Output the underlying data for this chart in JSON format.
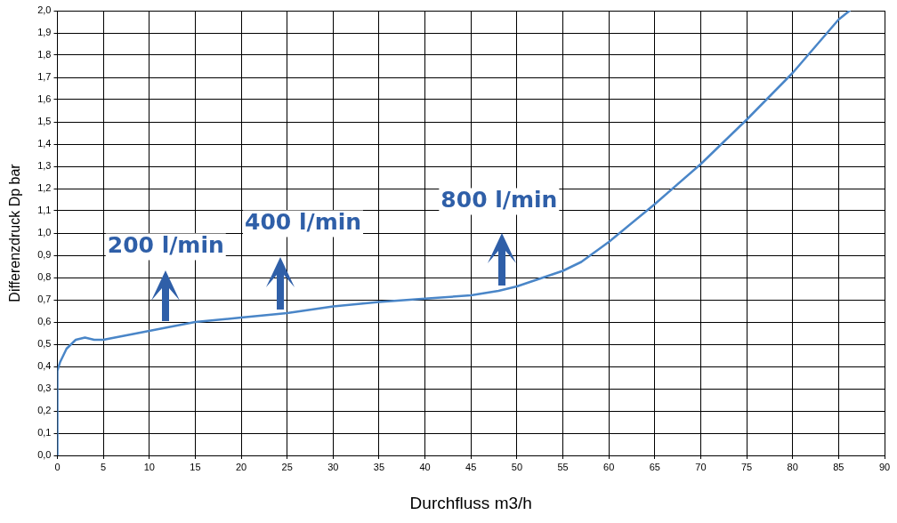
{
  "chart_data": {
    "type": "line",
    "xlabel": "Durchfluss m3/h",
    "ylabel": "Differenzdruck Dp bar",
    "x": [
      0,
      0,
      0.3,
      1,
      2,
      3,
      4,
      5,
      10,
      15,
      20,
      25,
      30,
      35,
      40,
      45,
      48,
      50,
      55,
      57,
      60,
      65,
      70,
      75,
      80,
      85,
      86.2
    ],
    "series": [
      {
        "color": "#4a86c8",
        "values": [
          0,
          0.38,
          0.42,
          0.48,
          0.52,
          0.53,
          0.52,
          0.52,
          0.56,
          0.6,
          0.62,
          0.64,
          0.67,
          0.69,
          0.705,
          0.72,
          0.74,
          0.76,
          0.83,
          0.87,
          0.96,
          1.13,
          1.31,
          1.51,
          1.72,
          1.96,
          2.0
        ]
      }
    ],
    "xlim": [
      0,
      90
    ],
    "xticks": [
      0,
      5,
      10,
      15,
      20,
      25,
      30,
      35,
      40,
      45,
      50,
      55,
      60,
      65,
      70,
      75,
      80,
      85,
      90
    ],
    "ylim": [
      0,
      2
    ],
    "yticks": [
      {
        "value": 0,
        "label": "0,0"
      },
      {
        "value": 0.1,
        "label": "0,1"
      },
      {
        "value": 0.2,
        "label": "0,2"
      },
      {
        "value": 0.3,
        "label": "0,3"
      },
      {
        "value": 0.4,
        "label": "0,4"
      },
      {
        "value": 0.5,
        "label": "0,5"
      },
      {
        "value": 0.6,
        "label": "0,6"
      },
      {
        "value": 0.7,
        "label": "0,7"
      },
      {
        "value": 0.8,
        "label": "0,8"
      },
      {
        "value": 0.9,
        "label": "0,9"
      },
      {
        "value": 1,
        "label": "1,0"
      },
      {
        "value": 1.1,
        "label": "1,1"
      },
      {
        "value": 1.2,
        "label": "1,2"
      },
      {
        "value": 1.3,
        "label": "1,3"
      },
      {
        "value": 1.4,
        "label": "1,4"
      },
      {
        "value": 1.5,
        "label": "1,5"
      },
      {
        "value": 1.6,
        "label": "1,6"
      },
      {
        "value": 1.7,
        "label": "1,7"
      },
      {
        "value": 1.8,
        "label": "1,8"
      },
      {
        "value": 1.9,
        "label": "1,9"
      },
      {
        "value": 2,
        "label": "2,0"
      }
    ],
    "annotations": [
      "200 l/min",
      "400 l/min",
      "800 l/min"
    ],
    "grid": true,
    "legend": false,
    "marker": "none",
    "line_style": "solid"
  }
}
